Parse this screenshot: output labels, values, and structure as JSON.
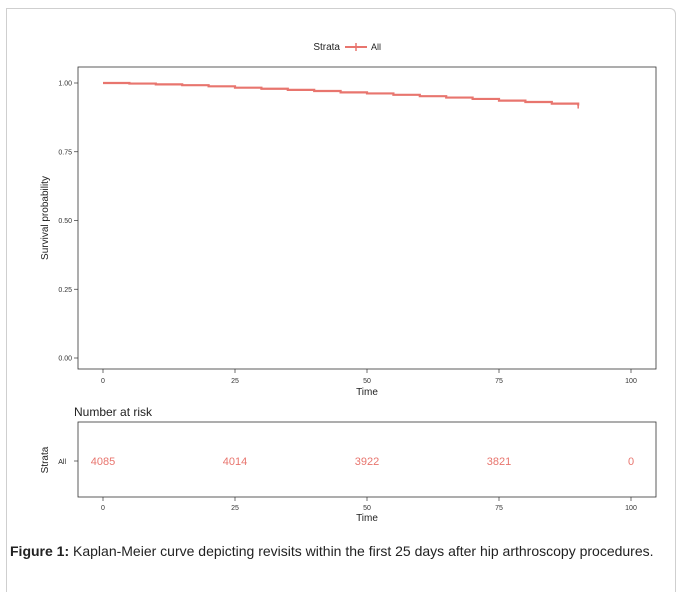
{
  "chart_data": {
    "type": "line",
    "legend": {
      "title": "Strata",
      "label": "All",
      "placement": "top"
    },
    "color": "#e8756e",
    "xlabel": "Time",
    "ylabel": "Survival probability",
    "xlim": [
      0,
      100
    ],
    "ylim": [
      0,
      1
    ],
    "x_ticks": [
      "0",
      "25",
      "50",
      "75",
      "100"
    ],
    "y_ticks": [
      "0.00",
      "0.25",
      "0.50",
      "0.75",
      "1.00"
    ],
    "grid": false,
    "series": [
      {
        "name": "All",
        "x": [
          0,
          5,
          10,
          15,
          20,
          25,
          30,
          35,
          40,
          45,
          50,
          55,
          60,
          65,
          70,
          75,
          80,
          85,
          90
        ],
        "y": [
          1.0,
          0.998,
          0.995,
          0.992,
          0.988,
          0.983,
          0.979,
          0.975,
          0.971,
          0.966,
          0.962,
          0.957,
          0.952,
          0.947,
          0.942,
          0.936,
          0.931,
          0.925,
          0.918
        ]
      }
    ],
    "risk_table": {
      "title": "Number at risk",
      "ylabel": "Strata",
      "xlabel": "Time",
      "row_label": "All",
      "times": [
        0,
        25,
        50,
        75,
        100
      ],
      "x_ticks": [
        "0",
        "25",
        "50",
        "75",
        "100"
      ],
      "values": [
        "4085",
        "4014",
        "3922",
        "3821",
        "0"
      ]
    }
  },
  "caption": {
    "label": "Figure 1:",
    "text": " Kaplan-Meier curve depicting revisits within the first 25 days after hip arthroscopy procedures."
  }
}
